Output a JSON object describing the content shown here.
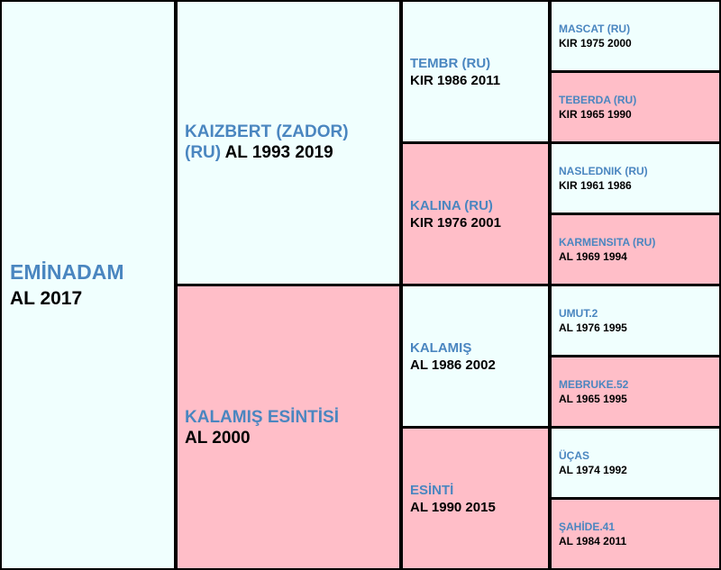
{
  "subject": {
    "name": "EMİNADAM",
    "info": "AL 2017"
  },
  "sire": {
    "name_line1": "KAIZBERT (ZADOR)",
    "name_line2": "(RU)",
    "info": "AL 1993 2019"
  },
  "dam": {
    "name": "KALAMIŞ ESİNTİSİ",
    "info": "AL 2000"
  },
  "sire_sire": {
    "name": "TEMBR (RU)",
    "info": "KIR 1986 2011"
  },
  "sire_dam": {
    "name": "KALINA (RU)",
    "info": "KIR 1976 2001"
  },
  "dam_sire": {
    "name": "KALAMIŞ",
    "info": "AL 1986 2002"
  },
  "dam_dam": {
    "name": "ESİNTİ",
    "info": "AL 1990 2015"
  },
  "ss_sire": {
    "name": "MASCAT (RU)",
    "info": "KIR 1975 2000"
  },
  "ss_dam": {
    "name": "TEBERDA (RU)",
    "info": "KIR 1965 1990"
  },
  "sd_sire": {
    "name": "NASLEDNIK (RU)",
    "info": "KIR 1961 1986"
  },
  "sd_dam": {
    "name": "KARMENSITA (RU)",
    "info": "AL 1969 1994"
  },
  "ds_sire": {
    "name": "UMUT.2",
    "info": "AL 1976 1995"
  },
  "ds_dam": {
    "name": "MEBRUKE.52",
    "info": "AL 1965 1995"
  },
  "dd_sire": {
    "name": "ÜÇAS",
    "info": "AL 1974 1992"
  },
  "dd_dam": {
    "name": "ŞAHİDE.41",
    "info": "AL 1984 2011"
  },
  "colors": {
    "male_bg": "#f0fffe",
    "female_bg": "#ffbec8",
    "name_text": "#4a86c0",
    "info_text": "#000000",
    "border": "#000000"
  }
}
